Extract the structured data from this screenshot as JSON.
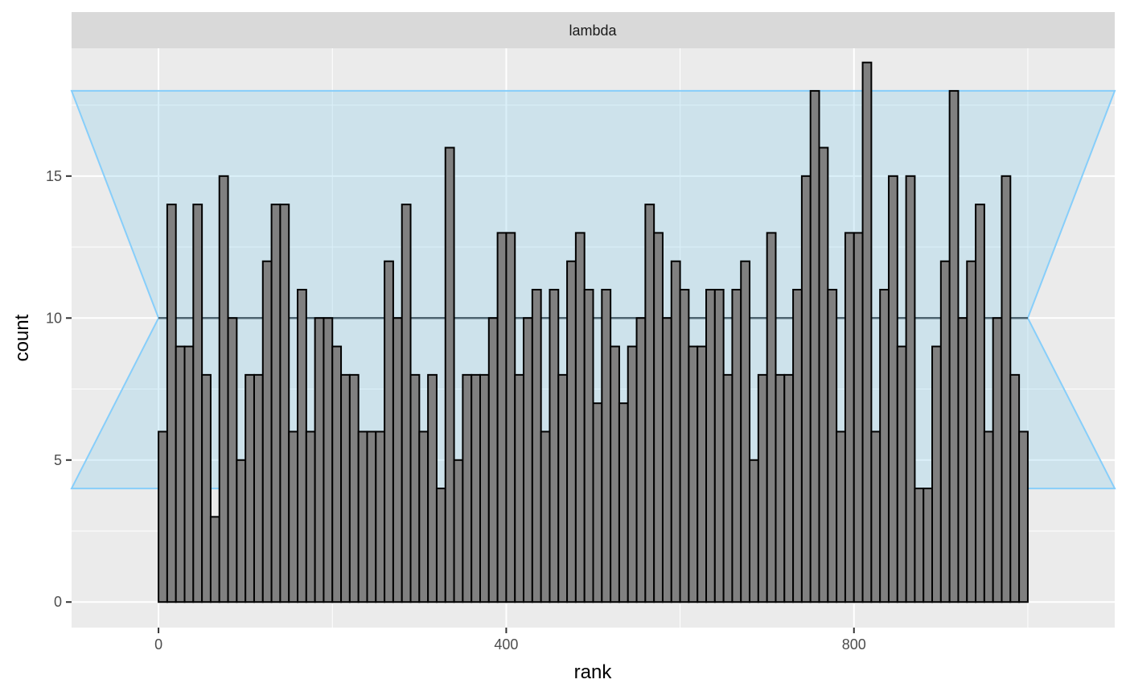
{
  "chart_data": {
    "type": "bar",
    "facet_label": "lambda",
    "xlabel": "rank",
    "ylabel": "count",
    "x_ticks": [
      0,
      400,
      800
    ],
    "y_ticks": [
      0,
      5,
      10,
      15
    ],
    "xlim": [
      -100,
      1100
    ],
    "ylim": [
      -0.9,
      19.5
    ],
    "bin_width": 10,
    "bin_starts": [
      0,
      10,
      20,
      30,
      40,
      50,
      60,
      70,
      80,
      90,
      100,
      110,
      120,
      130,
      140,
      150,
      160,
      170,
      180,
      190,
      200,
      210,
      220,
      230,
      240,
      250,
      260,
      270,
      280,
      290,
      300,
      310,
      320,
      330,
      340,
      350,
      360,
      370,
      380,
      390,
      400,
      410,
      420,
      430,
      440,
      450,
      460,
      470,
      480,
      490,
      500,
      510,
      520,
      530,
      540,
      550,
      560,
      570,
      580,
      590,
      600,
      610,
      620,
      630,
      640,
      650,
      660,
      670,
      680,
      690,
      700,
      710,
      720,
      730,
      740,
      750,
      760,
      770,
      780,
      790,
      800,
      810,
      820,
      830,
      840,
      850,
      860,
      870,
      880,
      890,
      900,
      910,
      920,
      930,
      940,
      950,
      960,
      970,
      980,
      990
    ],
    "values": [
      6,
      14,
      9,
      9,
      14,
      8,
      3,
      15,
      10,
      5,
      8,
      8,
      12,
      14,
      14,
      6,
      11,
      6,
      10,
      10,
      9,
      8,
      8,
      6,
      6,
      6,
      12,
      10,
      14,
      8,
      6,
      8,
      4,
      16,
      5,
      8,
      8,
      8,
      10,
      13,
      13,
      8,
      10,
      11,
      6,
      11,
      8,
      12,
      13,
      11,
      7,
      11,
      9,
      7,
      9,
      10,
      14,
      13,
      10,
      12,
      11,
      9,
      9,
      11,
      11,
      8,
      11,
      12,
      5,
      8,
      13,
      8,
      8,
      11,
      15,
      18,
      16,
      11,
      6,
      13,
      13,
      19,
      6,
      11,
      15,
      9,
      15,
      4,
      4,
      9,
      12,
      18,
      10,
      12,
      14,
      6,
      10,
      15,
      8,
      6
    ],
    "expected_count": 10,
    "confidence_band": {
      "lower": 4,
      "upper": 18,
      "x_range": [
        -100,
        1100
      ]
    },
    "grid": true,
    "colors": {
      "panel_bg": "#ebebeb",
      "grid_line": "#ffffff",
      "strip_bg": "#d9d9d9",
      "bar_fill": "#808080",
      "bar_stroke": "#000000",
      "band_fill": "#87ceeb",
      "band_stroke": "#87cefa",
      "mean_line": "#4d6470"
    }
  }
}
